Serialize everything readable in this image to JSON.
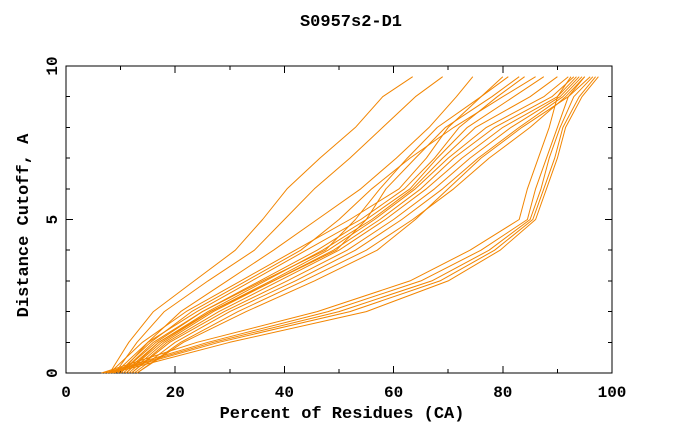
{
  "title": "S0957s2-D1",
  "chart_data": {
    "type": "line",
    "title": "S0957s2-D1",
    "xlabel": "Percent of Residues (CA)",
    "ylabel": "Distance Cutoff, A",
    "xlim": [
      0,
      100
    ],
    "ylim": [
      0,
      10
    ],
    "x_major_ticks": [
      0,
      20,
      40,
      60,
      80,
      100
    ],
    "x_minor_ticks": [
      10,
      30,
      50,
      70,
      90
    ],
    "y_major_ticks": [
      0,
      5,
      10
    ],
    "y_minor_ticks": [
      1,
      2,
      3,
      4,
      6,
      7,
      8,
      9
    ],
    "grid": false,
    "legend": false,
    "frame": "box-with-inward-ticks",
    "line_color": "#f28500",
    "axis_color": "#000000",
    "background": "#ffffff",
    "series": [
      {
        "points": [
          [
            8,
            0
          ],
          [
            11.5,
            1
          ],
          [
            16,
            2
          ],
          [
            23.5,
            3
          ],
          [
            31,
            4
          ],
          [
            36,
            5
          ],
          [
            40.5,
            6
          ],
          [
            46.5,
            7
          ],
          [
            53,
            8
          ],
          [
            58,
            9
          ],
          [
            63.5,
            9.65
          ]
        ]
      },
      {
        "points": [
          [
            9,
            0
          ],
          [
            13,
            1
          ],
          [
            18,
            2
          ],
          [
            26,
            3
          ],
          [
            34.5,
            4
          ],
          [
            40,
            5
          ],
          [
            45.5,
            6
          ],
          [
            52,
            7
          ],
          [
            58,
            8
          ],
          [
            64,
            9
          ],
          [
            69,
            9.65
          ]
        ]
      },
      {
        "points": [
          [
            10,
            0
          ],
          [
            15,
            1
          ],
          [
            21,
            2
          ],
          [
            29.5,
            3
          ],
          [
            38,
            4
          ],
          [
            46,
            5
          ],
          [
            54,
            6
          ],
          [
            60.5,
            7
          ],
          [
            66.5,
            8
          ],
          [
            71.5,
            9
          ],
          [
            74.5,
            9.65
          ]
        ]
      },
      {
        "points": [
          [
            9.5,
            0
          ],
          [
            15.5,
            1
          ],
          [
            23,
            2
          ],
          [
            33,
            3
          ],
          [
            43,
            4
          ],
          [
            50,
            5
          ],
          [
            56,
            6
          ],
          [
            63,
            7
          ],
          [
            71,
            8
          ],
          [
            80,
            9
          ],
          [
            86,
            9.65
          ]
        ]
      },
      {
        "points": [
          [
            8,
            0
          ],
          [
            14,
            1
          ],
          [
            22,
            2
          ],
          [
            32,
            3
          ],
          [
            42,
            4
          ],
          [
            52,
            5
          ],
          [
            61,
            6
          ],
          [
            66,
            7
          ],
          [
            70,
            8
          ],
          [
            76,
            9
          ],
          [
            80,
            9.65
          ]
        ]
      },
      {
        "points": [
          [
            9,
            0
          ],
          [
            15,
            1
          ],
          [
            24,
            2
          ],
          [
            34,
            3
          ],
          [
            44,
            4
          ],
          [
            54,
            5
          ],
          [
            62,
            6
          ],
          [
            67.5,
            7
          ],
          [
            72,
            8
          ],
          [
            79,
            9
          ],
          [
            84,
            9.65
          ]
        ]
      },
      {
        "points": [
          [
            10,
            0
          ],
          [
            16,
            1
          ],
          [
            25,
            2
          ],
          [
            35.5,
            3
          ],
          [
            46,
            4
          ],
          [
            55,
            5
          ],
          [
            63,
            6
          ],
          [
            68,
            7
          ],
          [
            73.5,
            8
          ],
          [
            82,
            9
          ],
          [
            87.5,
            9.65
          ]
        ]
      },
      {
        "points": [
          [
            10.5,
            0
          ],
          [
            17,
            1
          ],
          [
            26,
            2
          ],
          [
            36.5,
            3
          ],
          [
            47,
            4
          ],
          [
            56,
            5
          ],
          [
            63.5,
            6
          ],
          [
            69,
            7
          ],
          [
            75,
            8
          ],
          [
            85,
            9
          ],
          [
            90,
            9.65
          ]
        ]
      },
      {
        "points": [
          [
            11,
            0
          ],
          [
            17.5,
            1
          ],
          [
            26.5,
            2
          ],
          [
            37.5,
            3
          ],
          [
            48,
            4
          ],
          [
            56.5,
            5
          ],
          [
            64,
            6
          ],
          [
            70,
            7
          ],
          [
            77,
            8
          ],
          [
            87.5,
            9
          ],
          [
            92,
            9.65
          ]
        ]
      },
      {
        "points": [
          [
            11.5,
            0
          ],
          [
            18,
            1
          ],
          [
            27,
            2
          ],
          [
            38,
            3
          ],
          [
            49,
            4
          ],
          [
            57.5,
            5
          ],
          [
            65,
            6
          ],
          [
            71,
            7
          ],
          [
            78.5,
            8
          ],
          [
            89,
            9
          ],
          [
            93,
            9.65
          ]
        ]
      },
      {
        "points": [
          [
            12,
            0
          ],
          [
            18.5,
            1
          ],
          [
            28,
            2
          ],
          [
            39,
            3
          ],
          [
            50,
            4
          ],
          [
            58.5,
            5
          ],
          [
            66,
            6
          ],
          [
            72.5,
            7
          ],
          [
            80,
            8
          ],
          [
            90,
            9
          ],
          [
            93.5,
            9.65
          ]
        ]
      },
      {
        "points": [
          [
            12,
            0
          ],
          [
            19,
            1
          ],
          [
            29,
            2
          ],
          [
            40.5,
            3
          ],
          [
            51.5,
            4
          ],
          [
            60,
            5
          ],
          [
            67.5,
            6
          ],
          [
            74,
            7
          ],
          [
            81.5,
            8
          ],
          [
            90.5,
            9
          ],
          [
            94,
            9.65
          ]
        ]
      },
      {
        "points": [
          [
            12.5,
            0
          ],
          [
            20,
            1
          ],
          [
            30,
            2
          ],
          [
            42,
            3
          ],
          [
            53,
            4
          ],
          [
            61.5,
            5
          ],
          [
            69,
            6
          ],
          [
            75.5,
            7
          ],
          [
            83,
            8
          ],
          [
            91,
            9
          ],
          [
            94.5,
            9.65
          ]
        ]
      },
      {
        "points": [
          [
            13,
            0
          ],
          [
            21,
            1
          ],
          [
            31.5,
            2
          ],
          [
            43.5,
            3
          ],
          [
            55,
            4
          ],
          [
            63.5,
            5
          ],
          [
            71,
            6
          ],
          [
            77.5,
            7
          ],
          [
            85,
            8
          ],
          [
            91.5,
            9
          ],
          [
            95,
            9.65
          ]
        ]
      },
      {
        "points": [
          [
            13,
            0
          ],
          [
            21.5,
            1
          ],
          [
            33,
            2
          ],
          [
            45.5,
            3
          ],
          [
            57,
            4
          ],
          [
            64,
            5
          ],
          [
            70,
            6
          ],
          [
            76,
            7
          ],
          [
            83.5,
            8
          ],
          [
            92,
            9
          ],
          [
            96,
            9.65
          ]
        ]
      },
      {
        "points": [
          [
            10,
            0
          ],
          [
            16.5,
            1
          ],
          [
            25,
            2
          ],
          [
            36,
            3
          ],
          [
            47.5,
            4
          ],
          [
            53,
            5
          ],
          [
            57.5,
            6
          ],
          [
            62.5,
            7
          ],
          [
            68,
            8
          ],
          [
            76,
            9
          ],
          [
            81,
            9.65
          ]
        ]
      },
      {
        "points": [
          [
            11,
            0
          ],
          [
            17,
            1
          ],
          [
            26.5,
            2
          ],
          [
            38,
            3
          ],
          [
            49.5,
            4
          ],
          [
            55,
            5
          ],
          [
            58.6,
            6
          ],
          [
            64,
            7
          ],
          [
            69.5,
            8
          ],
          [
            78,
            9
          ],
          [
            83,
            9.65
          ]
        ]
      },
      {
        "points": [
          [
            6.5,
            0
          ],
          [
            24,
            1
          ],
          [
            46,
            2
          ],
          [
            63,
            3
          ],
          [
            74,
            4
          ],
          [
            83,
            5
          ],
          [
            84.5,
            6
          ],
          [
            86.5,
            7
          ],
          [
            88.5,
            8
          ],
          [
            90,
            9
          ],
          [
            92.5,
            9.65
          ]
        ]
      },
      {
        "points": [
          [
            7,
            0
          ],
          [
            26,
            1
          ],
          [
            48,
            2
          ],
          [
            65,
            3
          ],
          [
            76,
            4
          ],
          [
            84.5,
            5
          ],
          [
            86,
            6
          ],
          [
            88,
            7
          ],
          [
            90,
            8
          ],
          [
            92,
            9
          ],
          [
            95,
            9.65
          ]
        ]
      },
      {
        "points": [
          [
            7.5,
            0
          ],
          [
            27,
            1
          ],
          [
            50,
            2
          ],
          [
            67,
            3
          ],
          [
            77.5,
            4
          ],
          [
            85,
            5
          ],
          [
            87,
            6
          ],
          [
            88.5,
            7
          ],
          [
            90.5,
            8
          ],
          [
            93,
            9
          ],
          [
            96.5,
            9.65
          ]
        ]
      },
      {
        "points": [
          [
            8,
            0
          ],
          [
            28,
            1
          ],
          [
            52,
            2
          ],
          [
            68.5,
            3
          ],
          [
            78.5,
            4
          ],
          [
            85.5,
            5
          ],
          [
            87.5,
            6
          ],
          [
            89.5,
            7
          ],
          [
            91,
            8
          ],
          [
            94,
            9
          ],
          [
            97,
            9.65
          ]
        ]
      },
      {
        "points": [
          [
            8.5,
            0
          ],
          [
            30,
            1
          ],
          [
            55,
            2
          ],
          [
            70,
            3
          ],
          [
            79.5,
            4
          ],
          [
            86,
            5
          ],
          [
            88,
            6
          ],
          [
            90,
            7
          ],
          [
            91.5,
            8
          ],
          [
            94.5,
            9
          ],
          [
            97.5,
            9.65
          ]
        ]
      }
    ]
  }
}
